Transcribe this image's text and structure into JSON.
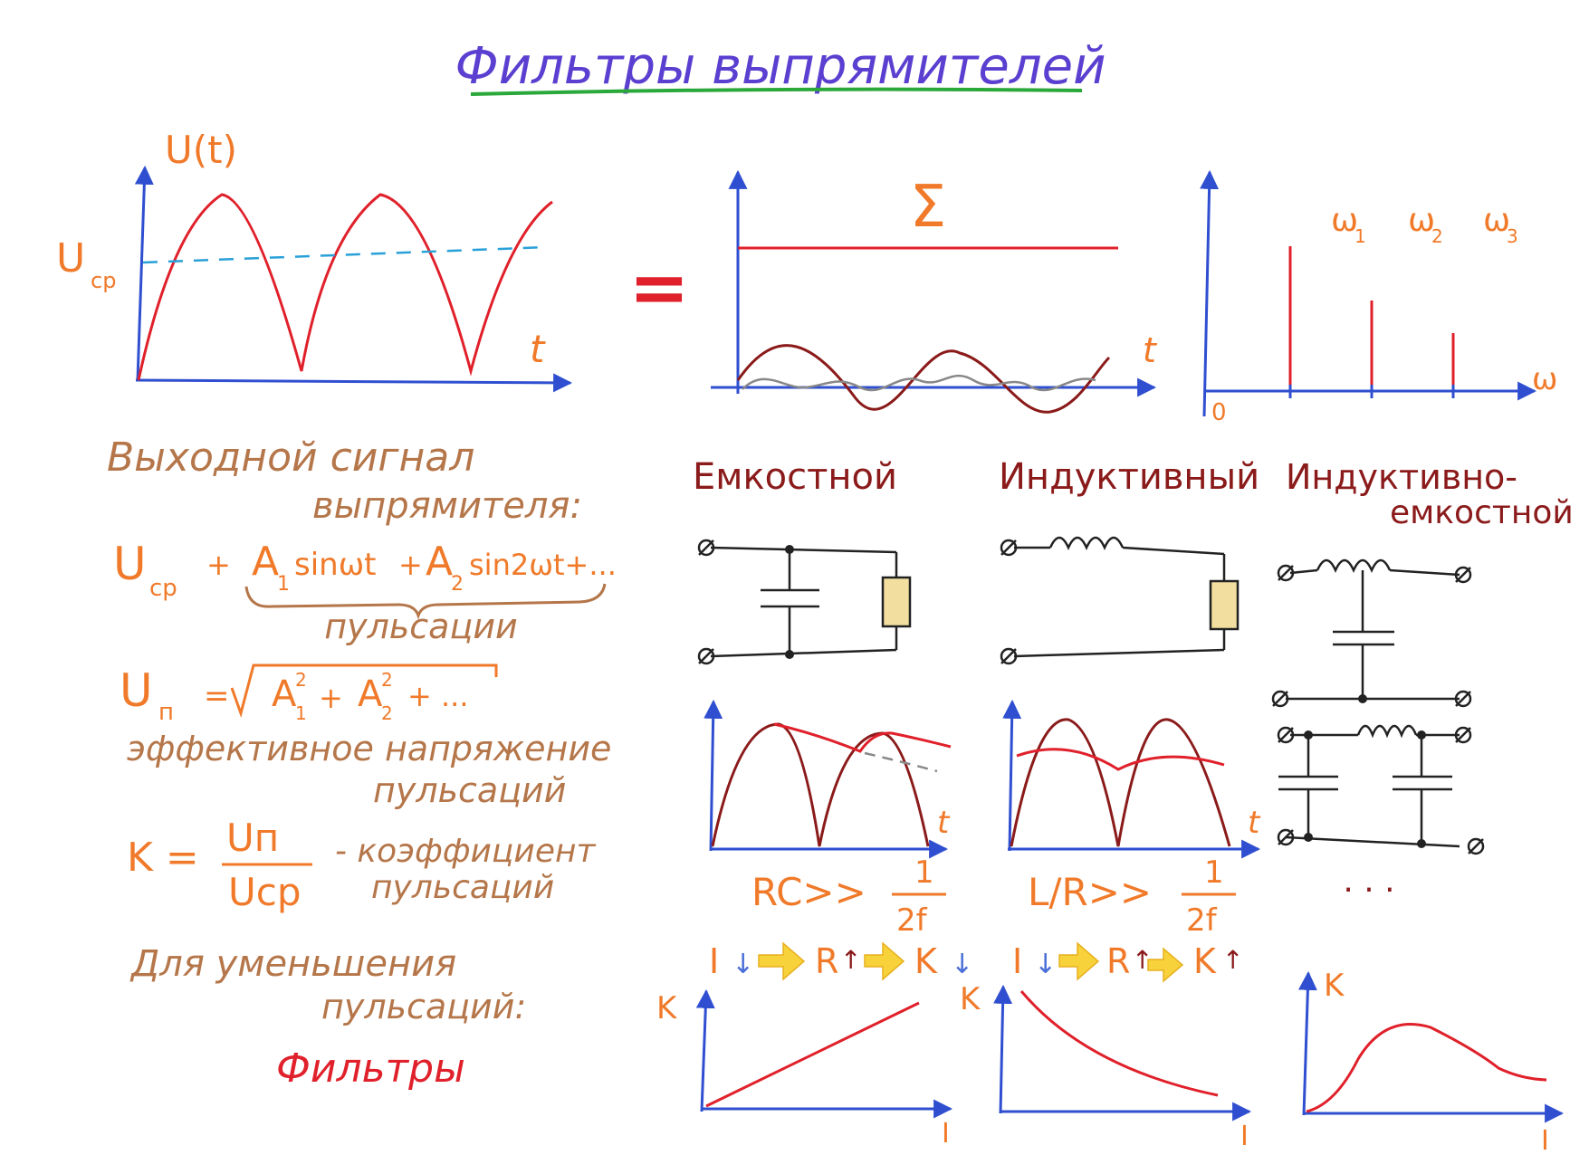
{
  "title": "Фильтры выпрямителей",
  "colors": {
    "axis": "#2f4fd0",
    "signal": "#e0202a",
    "dark_signal": "#8b1a1a",
    "harmonic2": "#888888",
    "dc_dashed": "#29a0d8",
    "text_orange": "#f07a2a",
    "text_brown": "#b5764a",
    "resistor": "#f2dfa0",
    "arrow_fill": "#f7d23a"
  },
  "left_plot": {
    "ylabel": "U(t)",
    "xlabel": "t",
    "level_label_main": "U",
    "level_label_sub": "ср"
  },
  "equals": "=",
  "sum_plot": {
    "symbol": "Σ",
    "xlabel": "t"
  },
  "spectrum_plot": {
    "xlabel": "ω",
    "origin": "0",
    "labels": [
      {
        "main": "ω",
        "sub": "1"
      },
      {
        "main": "ω",
        "sub": "2"
      },
      {
        "main": "ω",
        "sub": "3"
      }
    ]
  },
  "text_block": {
    "line1": "Выходной сигнал",
    "line2": "выпрямителя:",
    "formula": {
      "ucp": "U",
      "ucp_sub": "ср",
      "plus1": "+",
      "a1": "A",
      "a1_sub": "1",
      "term1": "sinωt",
      "plus2": "+",
      "a2": "A",
      "a2_sub": "2",
      "term2": "sin2ωt+...",
      "brace_label": "пульсации"
    },
    "un_formula": {
      "un": "U",
      "un_sub": "п",
      "eq": "=",
      "a1": "A",
      "a1_sub": "1",
      "a1_sup": "2",
      "plus": "+",
      "a2": "A",
      "a2_sub": "2",
      "a2_sup": "2",
      "rest": "+ ..."
    },
    "eff_line1": "эффективное напряжение",
    "eff_line2": "пульсаций",
    "k_formula": {
      "k": "K =",
      "num": "Uп",
      "den": "Uср",
      "dash_text": "- коэффициент",
      "line2": "пульсаций"
    },
    "reduce_line1": "Для уменьшения",
    "reduce_line2": "пульсаций:",
    "filters": "Фильтры"
  },
  "columns": [
    {
      "title": "Емкостной",
      "condition": {
        "lhs": "RC>>",
        "num": "1",
        "den": "2f"
      },
      "chain": {
        "a": "I",
        "a_dir": "↓",
        "b": "R",
        "b_dir": "↑",
        "c": "K",
        "c_dir": "↓"
      },
      "graph": {
        "ylabel": "K",
        "xlabel": "I",
        "trend": "increasing-linear"
      }
    },
    {
      "title": "Индуктивный",
      "condition": {
        "lhs": "L/R>>",
        "num": "1",
        "den": "2f"
      },
      "chain": {
        "a": "I",
        "a_dir": "↓",
        "b": "R",
        "b_dir": "↑",
        "c": "K",
        "c_dir": "↑"
      },
      "graph": {
        "ylabel": "K",
        "xlabel": "I",
        "trend": "decreasing"
      }
    },
    {
      "title_line1": "Индуктивно-",
      "title_line2": "емкостной",
      "ellipsis": ". . .",
      "graph": {
        "ylabel": "K",
        "xlabel": "I",
        "trend": "peak"
      }
    }
  ],
  "wave_plots": {
    "xlabel_cap": "t",
    "xlabel_ind": "t"
  }
}
